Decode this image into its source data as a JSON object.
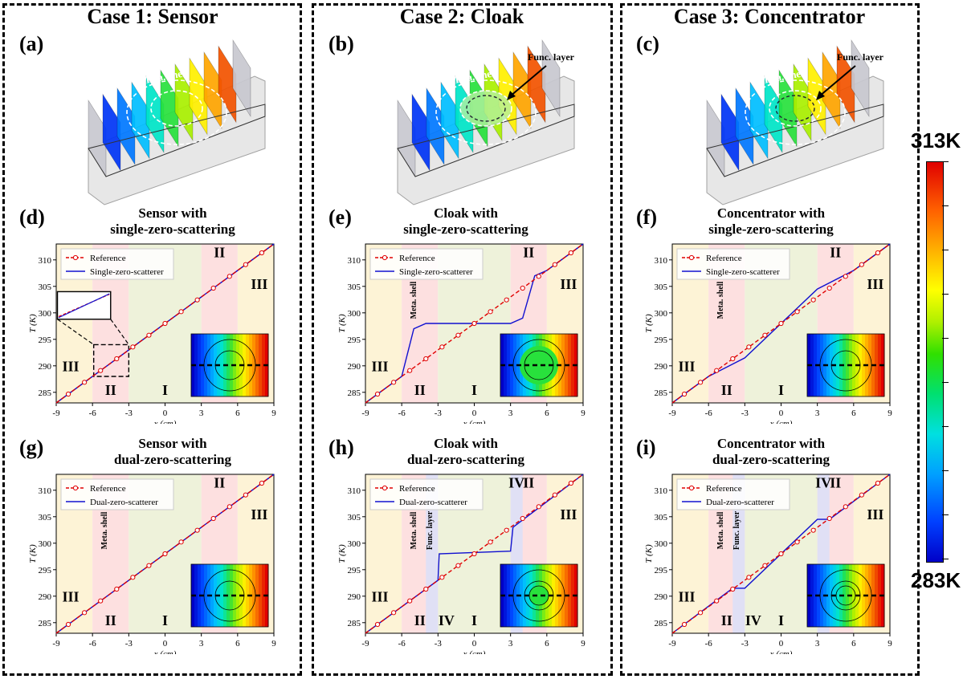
{
  "cases": [
    {
      "title": "Case 1: Sensor"
    },
    {
      "title": "Case 2: Cloak"
    },
    {
      "title": "Case 3: Concentrator"
    }
  ],
  "models": [
    {
      "label": "(a)",
      "shell_label": "Meta. shell",
      "func_label": ""
    },
    {
      "label": "(b)",
      "shell_label": "Meta. shell",
      "func_label": "Func. layer"
    },
    {
      "label": "(c)",
      "shell_label": "Meta. shell",
      "func_label": "Func. layer"
    }
  ],
  "colorbar": {
    "max_label": "313K",
    "min_label": "283K"
  },
  "chart_data": [
    {
      "id": "d",
      "label": "(d)",
      "type": "line",
      "title_line1": "Sensor with",
      "title_line2": "single-zero-scattering",
      "xlabel": "x (cm)",
      "ylabel": "T (K)",
      "xlim": [
        -9,
        9
      ],
      "ylim": [
        283,
        313
      ],
      "xticks": [
        "-9",
        "-6",
        "-3",
        "0",
        "3",
        "6",
        "9"
      ],
      "yticks": [
        "285",
        "290",
        "295",
        "300",
        "305",
        "310"
      ],
      "legend": [
        "Reference",
        "Single-zero-scatterer"
      ],
      "mode": "sensor",
      "func": false,
      "zoom_inset": true,
      "region_labels": {
        "III_left": "III",
        "II_left": "II",
        "I": "I",
        "II_right": "II",
        "III_right": "III"
      },
      "vertical_labels": [],
      "series": [
        {
          "name": "Reference",
          "x": [
            -9,
            9
          ],
          "y": [
            283,
            313
          ]
        },
        {
          "name": "Single-zero-scatterer",
          "x": [
            -9,
            -6,
            -3,
            3,
            6,
            9
          ],
          "y": [
            283,
            288,
            293,
            303,
            308,
            313
          ]
        }
      ]
    },
    {
      "id": "e",
      "label": "(e)",
      "type": "line",
      "title_line1": "Cloak with",
      "title_line2": "single-zero-scattering",
      "xlabel": "x (cm)",
      "ylabel": "T (K)",
      "xlim": [
        -9,
        9
      ],
      "ylim": [
        283,
        313
      ],
      "xticks": [
        "-9",
        "-6",
        "-3",
        "0",
        "3",
        "6",
        "9"
      ],
      "yticks": [
        "285",
        "290",
        "295",
        "300",
        "305",
        "310"
      ],
      "legend": [
        "Reference",
        "Single-zero-scatterer"
      ],
      "mode": "cloak_single",
      "func": false,
      "zoom_inset": false,
      "region_labels": {
        "III_left": "III",
        "II_left": "II",
        "I": "I",
        "II_right": "II",
        "III_right": "III"
      },
      "vertical_labels": [
        "Meta. shell"
      ],
      "series": [
        {
          "name": "Reference",
          "x": [
            -9,
            9
          ],
          "y": [
            283,
            313
          ]
        },
        {
          "name": "Single-zero-scatterer",
          "x": [
            -9,
            -6,
            -5,
            -4,
            -3,
            0,
            3,
            4,
            5,
            6,
            9
          ],
          "y": [
            283,
            288,
            297,
            298,
            298,
            298,
            298,
            299,
            307,
            308,
            313
          ]
        }
      ]
    },
    {
      "id": "f",
      "label": "(f)",
      "type": "line",
      "title_line1": "Concentrator with",
      "title_line2": "single-zero-scattering",
      "xlabel": "x (cm)",
      "ylabel": "T (K)",
      "xlim": [
        -9,
        9
      ],
      "ylim": [
        283,
        313
      ],
      "xticks": [
        "-9",
        "-6",
        "-3",
        "0",
        "3",
        "6",
        "9"
      ],
      "yticks": [
        "285",
        "290",
        "295",
        "300",
        "305",
        "310"
      ],
      "legend": [
        "Reference",
        "Single-zero-scatterer"
      ],
      "mode": "conc_single",
      "func": false,
      "zoom_inset": false,
      "region_labels": {
        "III_left": "III",
        "II_left": "II",
        "I": "I",
        "II_right": "II",
        "III_right": "III"
      },
      "vertical_labels": [
        "Meta. shell"
      ],
      "series": [
        {
          "name": "Reference",
          "x": [
            -9,
            9
          ],
          "y": [
            283,
            313
          ]
        },
        {
          "name": "Single-zero-scatterer",
          "x": [
            -9,
            -6,
            -3,
            3,
            6,
            9
          ],
          "y": [
            283,
            288,
            291.5,
            304.5,
            308,
            313
          ]
        }
      ]
    },
    {
      "id": "g",
      "label": "(g)",
      "type": "line",
      "title_line1": "Sensor with",
      "title_line2": "dual-zero-scattering",
      "xlabel": "x (cm)",
      "ylabel": "T (K)",
      "xlim": [
        -9,
        9
      ],
      "ylim": [
        283,
        313
      ],
      "xticks": [
        "-9",
        "-6",
        "-3",
        "0",
        "3",
        "6",
        "9"
      ],
      "yticks": [
        "285",
        "290",
        "295",
        "300",
        "305",
        "310"
      ],
      "legend": [
        "Reference",
        "Dual-zero-scatterer"
      ],
      "mode": "sensor",
      "func": false,
      "zoom_inset": false,
      "region_labels": {
        "III_left": "III",
        "II_left": "II",
        "I": "I",
        "II_right": "II",
        "III_right": "III"
      },
      "vertical_labels": [
        "Meta. shell"
      ],
      "series": [
        {
          "name": "Reference",
          "x": [
            -9,
            9
          ],
          "y": [
            283,
            313
          ]
        },
        {
          "name": "Dual-zero-scatterer",
          "x": [
            -9,
            9
          ],
          "y": [
            283,
            313
          ]
        }
      ]
    },
    {
      "id": "h",
      "label": "(h)",
      "type": "line",
      "title_line1": "Cloak with",
      "title_line2": "dual-zero-scattering",
      "xlabel": "x (cm)",
      "ylabel": "T (K)",
      "xlim": [
        -9,
        9
      ],
      "ylim": [
        283,
        313
      ],
      "xticks": [
        "-9",
        "-6",
        "-3",
        "0",
        "3",
        "6",
        "9"
      ],
      "yticks": [
        "285",
        "290",
        "295",
        "300",
        "305",
        "310"
      ],
      "legend": [
        "Reference",
        "Dual-zero-scatterer"
      ],
      "mode": "cloak_dual",
      "func": true,
      "zoom_inset": false,
      "region_labels": {
        "III_left": "III",
        "II_left": "II",
        "IV_left": "IV",
        "I": "I",
        "IV_right": "IV",
        "II_right": "II",
        "III_right": "III"
      },
      "vertical_labels": [
        "Meta. shell",
        "Func. layer"
      ],
      "series": [
        {
          "name": "Reference",
          "x": [
            -9,
            9
          ],
          "y": [
            283,
            313
          ]
        },
        {
          "name": "Dual-zero-scatterer",
          "x": [
            -9,
            -3,
            -2.9,
            3,
            3.2,
            9
          ],
          "y": [
            283,
            293,
            298,
            298.5,
            303,
            313
          ]
        }
      ]
    },
    {
      "id": "i",
      "label": "(i)",
      "type": "line",
      "title_line1": "Concentrator with",
      "title_line2": "dual-zero-scattering",
      "xlabel": "x (cm)",
      "ylabel": "T (K)",
      "xlim": [
        -9,
        9
      ],
      "ylim": [
        283,
        313
      ],
      "xticks": [
        "-9",
        "-6",
        "-3",
        "0",
        "3",
        "6",
        "9"
      ],
      "yticks": [
        "285",
        "290",
        "295",
        "300",
        "305",
        "310"
      ],
      "legend": [
        "Reference",
        "Dual-zero-scatterer"
      ],
      "mode": "conc_dual",
      "func": true,
      "zoom_inset": false,
      "region_labels": {
        "III_left": "III",
        "II_left": "II",
        "IV_left": "IV",
        "I": "I",
        "IV_right": "IV",
        "II_right": "II",
        "III_right": "III"
      },
      "vertical_labels": [
        "Meta. shell",
        "Func. layer"
      ],
      "series": [
        {
          "name": "Reference",
          "x": [
            -9,
            9
          ],
          "y": [
            283,
            313
          ]
        },
        {
          "name": "Dual-zero-scatterer",
          "x": [
            -9,
            -4,
            -3,
            3,
            4,
            9
          ],
          "y": [
            283,
            291.5,
            291.5,
            304.5,
            304.5,
            313
          ]
        }
      ]
    }
  ]
}
